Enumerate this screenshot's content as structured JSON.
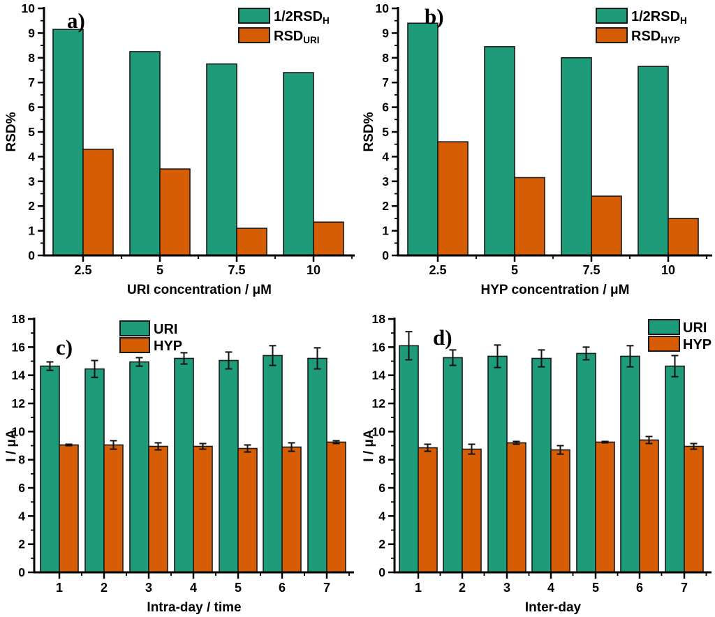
{
  "figure": {
    "background": "#ffffff",
    "axis_color": "#000000",
    "series_colors": {
      "green": "#1E9B78",
      "orange": "#D65D03"
    }
  },
  "chart_data": [
    {
      "id": "a",
      "type": "bar",
      "panel_label": "a)",
      "categories": [
        "2.5",
        "5",
        "7.5",
        "10"
      ],
      "series": [
        {
          "name": "1/2RSD",
          "name_subscript": "H",
          "color": "#1E9B78",
          "values": [
            9.15,
            8.25,
            7.75,
            7.4
          ]
        },
        {
          "name": "RSD",
          "name_subscript": "URI",
          "color": "#D65D03",
          "values": [
            4.3,
            3.5,
            1.1,
            1.35
          ]
        }
      ],
      "xlabel": "URI concentration / μM",
      "ylabel": "RSD%",
      "ylim": [
        0,
        10
      ],
      "ytick_step": 1,
      "yminor_step": 0.5,
      "legend_position": "top-right",
      "grid": false
    },
    {
      "id": "b",
      "type": "bar",
      "panel_label": "b)",
      "categories": [
        "2.5",
        "5",
        "7.5",
        "10"
      ],
      "series": [
        {
          "name": "1/2RSD",
          "name_subscript": "H",
          "color": "#1E9B78",
          "values": [
            9.4,
            8.45,
            8.0,
            7.65
          ]
        },
        {
          "name": "RSD",
          "name_subscript": "HYP",
          "color": "#D65D03",
          "values": [
            4.6,
            3.15,
            2.4,
            1.5
          ]
        }
      ],
      "xlabel": "HYP concentration / μM",
      "ylabel": "RSD%",
      "ylim": [
        0,
        10
      ],
      "ytick_step": 1,
      "yminor_step": 0.5,
      "legend_position": "top-right",
      "grid": false
    },
    {
      "id": "c",
      "type": "bar",
      "panel_label": "c)",
      "categories": [
        "1",
        "2",
        "3",
        "4",
        "5",
        "6",
        "7"
      ],
      "series": [
        {
          "name": "URI",
          "name_subscript": "",
          "color": "#1E9B78",
          "values": [
            14.65,
            14.45,
            14.95,
            15.2,
            15.05,
            15.4,
            15.2
          ],
          "errors": [
            0.3,
            0.6,
            0.3,
            0.4,
            0.6,
            0.7,
            0.75
          ]
        },
        {
          "name": "HYP",
          "name_subscript": "",
          "color": "#D65D03",
          "values": [
            9.05,
            9.05,
            8.95,
            8.95,
            8.8,
            8.9,
            9.25
          ],
          "errors": [
            0.05,
            0.3,
            0.25,
            0.2,
            0.25,
            0.3,
            0.1
          ]
        }
      ],
      "xlabel": "Intra-day / time",
      "ylabel": "I / μA",
      "ylim": [
        0,
        18
      ],
      "ytick_step": 2,
      "yminor_step": 1,
      "legend_position": "top-center",
      "grid": false
    },
    {
      "id": "d",
      "type": "bar",
      "panel_label": "d)",
      "categories": [
        "1",
        "2",
        "3",
        "4",
        "5",
        "6",
        "7"
      ],
      "series": [
        {
          "name": "URI",
          "name_subscript": "",
          "color": "#1E9B78",
          "values": [
            16.1,
            15.25,
            15.35,
            15.2,
            15.55,
            15.35,
            14.65
          ],
          "errors": [
            1.0,
            0.55,
            0.8,
            0.6,
            0.45,
            0.75,
            0.75
          ]
        },
        {
          "name": "HYP",
          "name_subscript": "",
          "color": "#D65D03",
          "values": [
            8.85,
            8.75,
            9.2,
            8.7,
            9.25,
            9.4,
            8.95
          ],
          "errors": [
            0.25,
            0.35,
            0.1,
            0.3,
            0.05,
            0.25,
            0.2
          ]
        }
      ],
      "xlabel": "Inter-day",
      "ylabel": "I / μA",
      "ylim": [
        0,
        18
      ],
      "ytick_step": 2,
      "yminor_step": 1,
      "legend_position": "top-right-far",
      "grid": false
    }
  ]
}
